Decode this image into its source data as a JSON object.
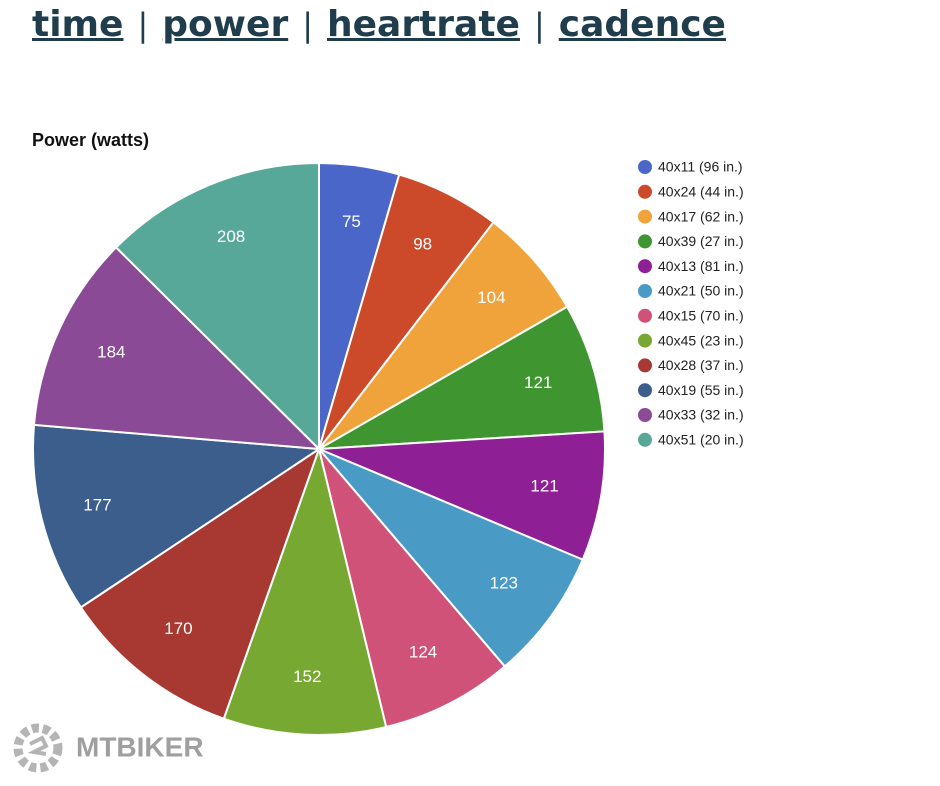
{
  "nav": {
    "links": [
      "time",
      "power",
      "heartrate",
      "cadence"
    ],
    "separator": "|"
  },
  "watermark": "MTBIKER",
  "chart_data": {
    "type": "pie",
    "title": "Power (watts)",
    "categories": [
      "40x11 (96 in.)",
      "40x24 (44 in.)",
      "40x17 (62 in.)",
      "40x39 (27 in.)",
      "40x13 (81 in.)",
      "40x21 (50 in.)",
      "40x15 (70 in.)",
      "40x45 (23 in.)",
      "40x28 (37 in.)",
      "40x19 (55 in.)",
      "40x33 (32 in.)",
      "40x51 (20 in.)"
    ],
    "values": [
      75,
      98,
      104,
      121,
      121,
      123,
      124,
      152,
      170,
      177,
      184,
      208
    ],
    "colors": [
      "#4a66c9",
      "#cc4a2a",
      "#f0a33a",
      "#3f9631",
      "#8e1f94",
      "#4a9ac6",
      "#d05278",
      "#77a832",
      "#a83832",
      "#3b5e8c",
      "#8a4a96",
      "#58a89a"
    ],
    "legend": "right"
  }
}
